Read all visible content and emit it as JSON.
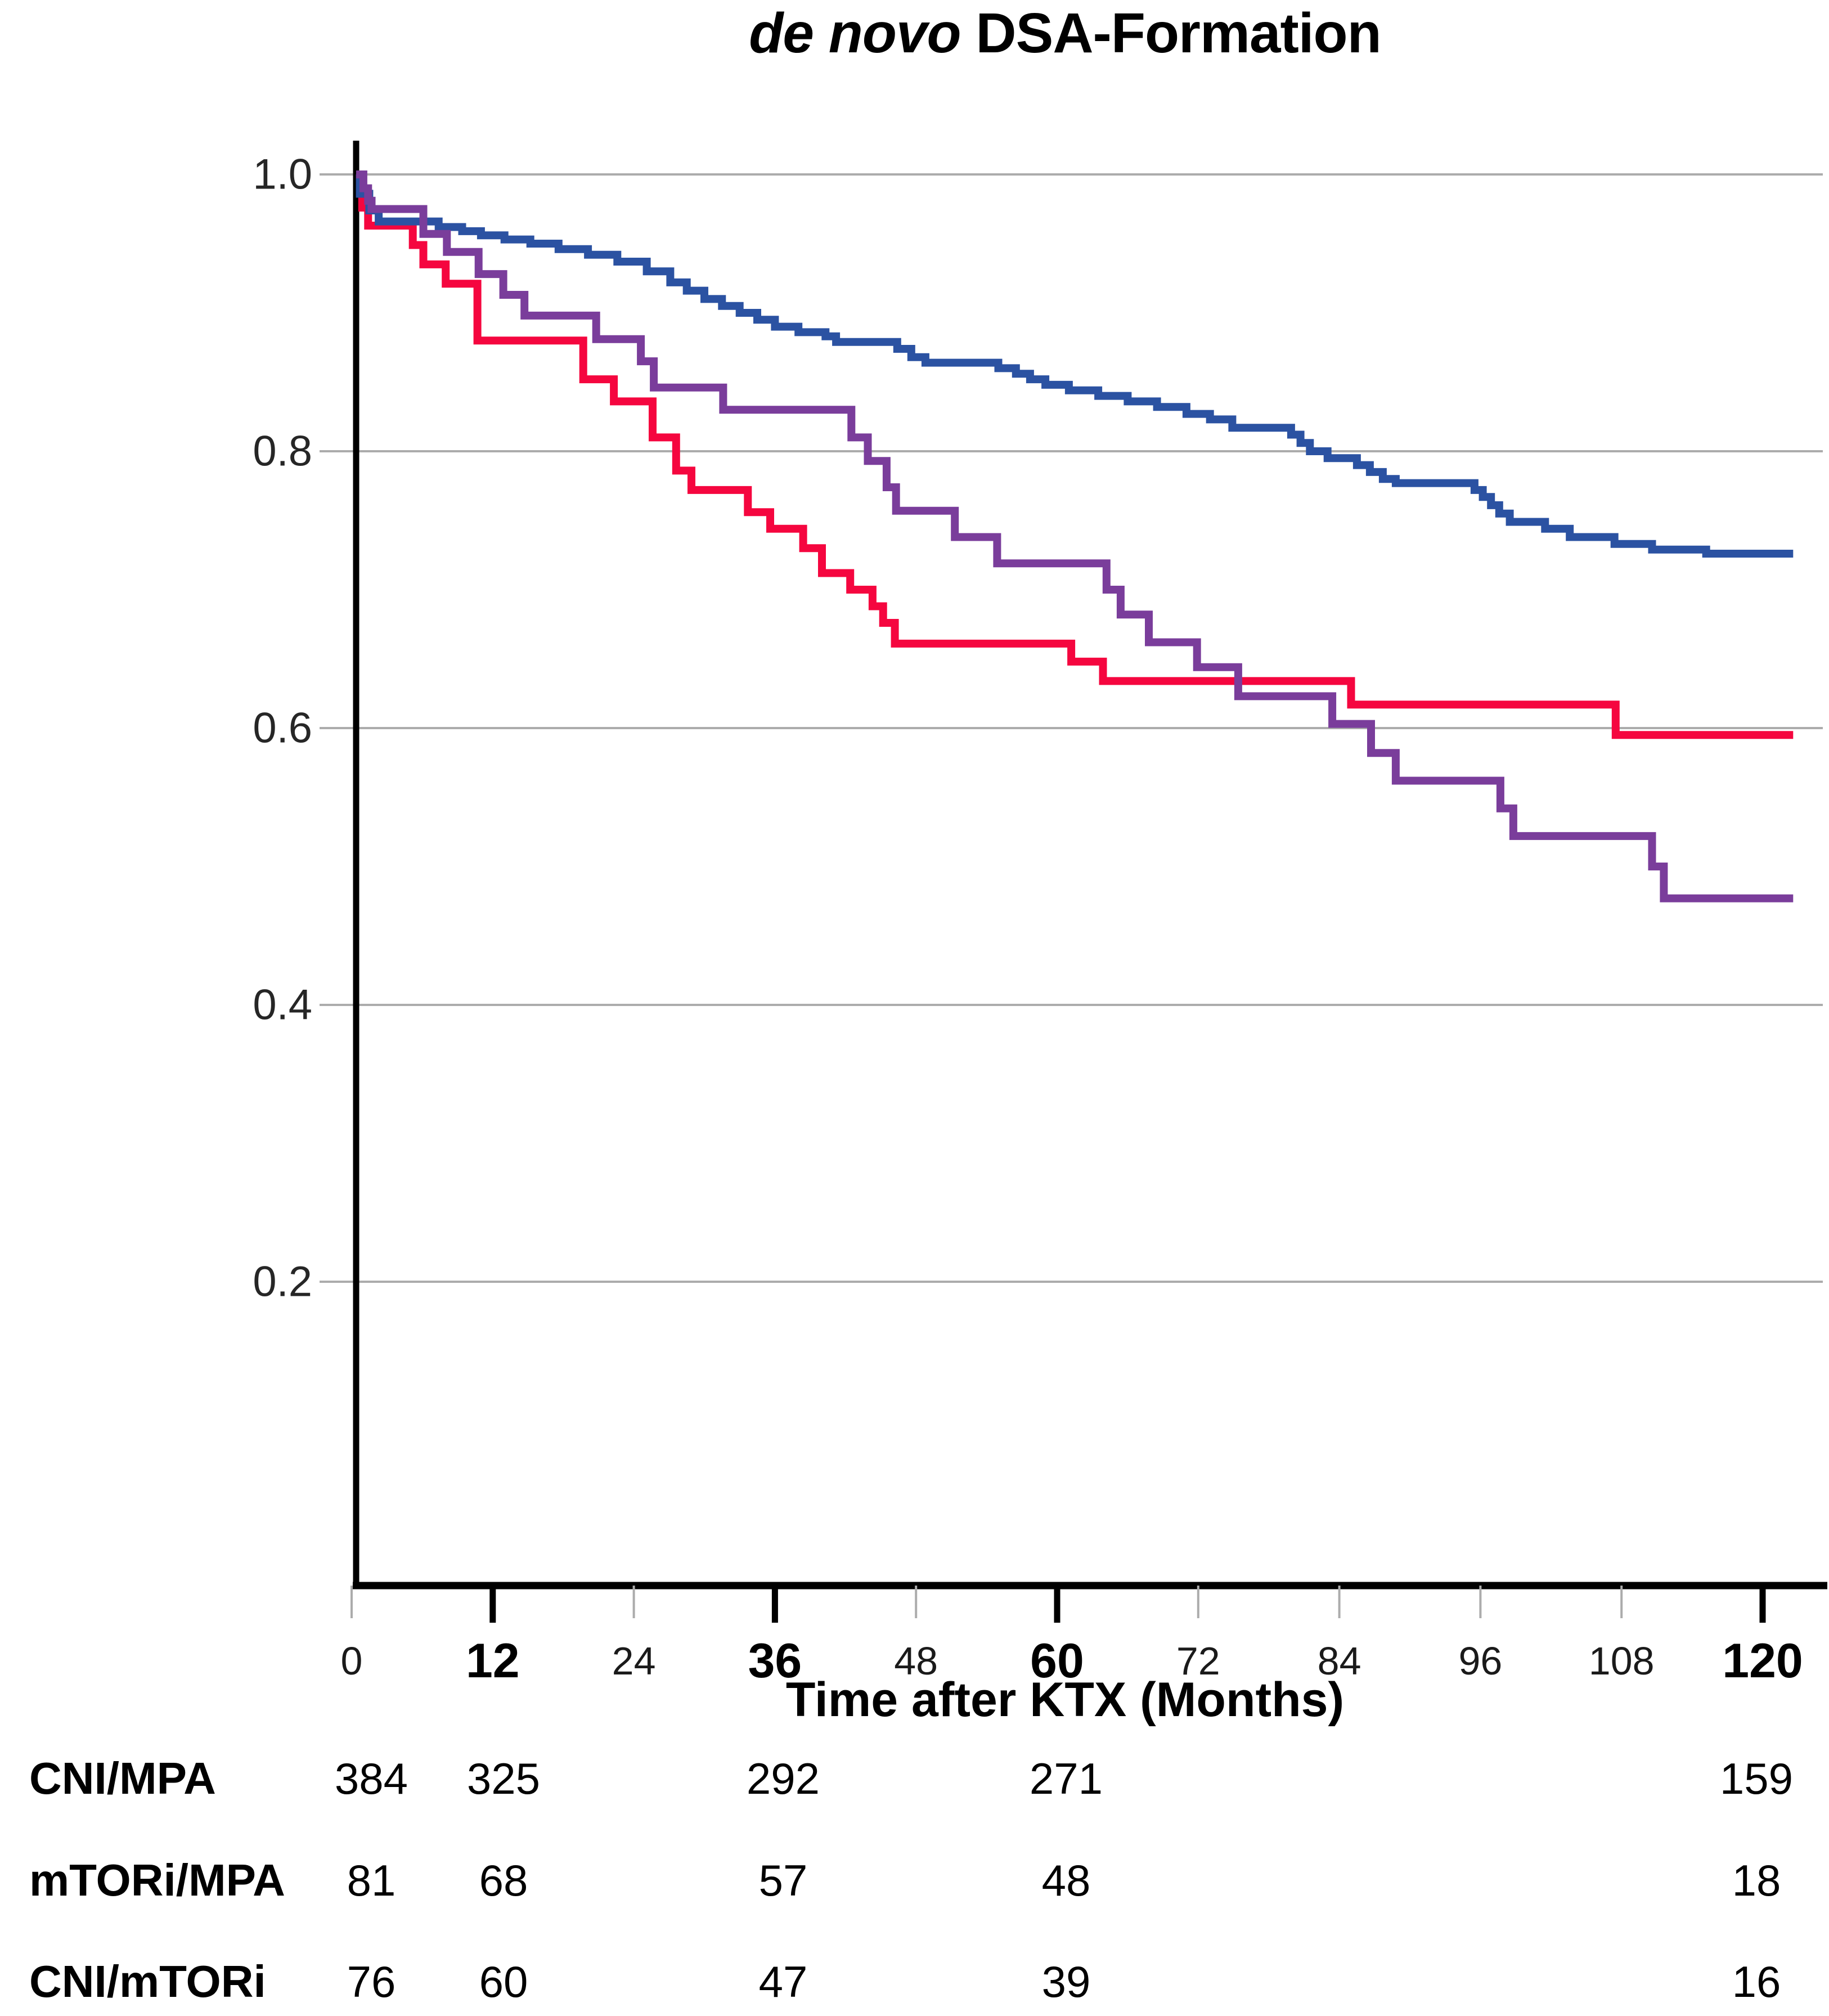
{
  "title": {
    "italic": "de novo",
    "rest": "DSA-Formation"
  },
  "chart_data": {
    "type": "line",
    "subtype": "kaplan-meier-step",
    "title": "de novo DSA-Formation",
    "xlabel": "Time after KTX (Months)",
    "ylabel": "",
    "xlim": [
      0,
      125
    ],
    "ylim": [
      0,
      1.05
    ],
    "grid": true,
    "y_ticks": [
      {
        "value": 1.0,
        "label": "1.0"
      },
      {
        "value": 0.8,
        "label": "0.8"
      },
      {
        "value": 0.6,
        "label": "0.6"
      },
      {
        "value": 0.4,
        "label": "0.4"
      },
      {
        "value": 0.2,
        "label": "0.2"
      }
    ],
    "x_ticks": [
      {
        "value": 0,
        "label": "0",
        "bold": false
      },
      {
        "value": 12,
        "label": "12",
        "bold": true
      },
      {
        "value": 24,
        "label": "24",
        "bold": false
      },
      {
        "value": 36,
        "label": "36",
        "bold": true
      },
      {
        "value": 48,
        "label": "48",
        "bold": false
      },
      {
        "value": 60,
        "label": "60",
        "bold": true
      },
      {
        "value": 72,
        "label": "72",
        "bold": false
      },
      {
        "value": 84,
        "label": "84",
        "bold": false
      },
      {
        "value": 96,
        "label": "96",
        "bold": false
      },
      {
        "value": 108,
        "label": "108",
        "bold": false
      },
      {
        "value": 120,
        "label": "120",
        "bold": true
      }
    ],
    "curve_end_month": 122.6,
    "series": [
      {
        "name": "CNI/mTORi",
        "color": "#F5063F",
        "steps": [
          [
            0,
            1.0
          ],
          [
            0.9,
            0.976
          ],
          [
            1.4,
            0.963
          ],
          [
            5.2,
            0.949
          ],
          [
            6.1,
            0.935
          ],
          [
            8.0,
            0.921
          ],
          [
            10.7,
            0.88
          ],
          [
            19.7,
            0.852
          ],
          [
            22.3,
            0.836
          ],
          [
            25.6,
            0.81
          ],
          [
            27.6,
            0.786
          ],
          [
            28.9,
            0.772
          ],
          [
            33.7,
            0.756
          ],
          [
            35.6,
            0.744
          ],
          [
            38.4,
            0.73
          ],
          [
            40.0,
            0.712
          ],
          [
            42.4,
            0.7
          ],
          [
            44.3,
            0.688
          ],
          [
            45.2,
            0.676
          ],
          [
            46.2,
            0.661
          ],
          [
            61.2,
            0.648
          ],
          [
            63.9,
            0.634
          ],
          [
            85.0,
            0.617
          ],
          [
            107.5,
            0.595
          ]
        ]
      },
      {
        "name": "CNI/MPA",
        "color": "#2B52A2",
        "steps": [
          [
            0,
            1.0
          ],
          [
            0.7,
            0.986
          ],
          [
            1.5,
            0.974
          ],
          [
            2.3,
            0.966
          ],
          [
            7.4,
            0.962
          ],
          [
            9.4,
            0.959
          ],
          [
            11,
            0.956
          ],
          [
            13,
            0.953
          ],
          [
            15.2,
            0.95
          ],
          [
            17.6,
            0.946
          ],
          [
            20.1,
            0.942
          ],
          [
            22.6,
            0.937
          ],
          [
            25.1,
            0.93
          ],
          [
            27.1,
            0.922
          ],
          [
            28.5,
            0.916
          ],
          [
            30,
            0.91
          ],
          [
            31.5,
            0.905
          ],
          [
            33,
            0.9
          ],
          [
            34.5,
            0.895
          ],
          [
            36,
            0.89
          ],
          [
            38,
            0.886
          ],
          [
            40.3,
            0.883
          ],
          [
            41.2,
            0.879
          ],
          [
            46.4,
            0.874
          ],
          [
            47.6,
            0.868
          ],
          [
            48.8,
            0.864
          ],
          [
            55,
            0.86
          ],
          [
            56.5,
            0.856
          ],
          [
            57.7,
            0.852
          ],
          [
            59,
            0.848
          ],
          [
            61,
            0.844
          ],
          [
            63.5,
            0.84
          ],
          [
            66,
            0.836
          ],
          [
            68.5,
            0.832
          ],
          [
            71,
            0.827
          ],
          [
            73,
            0.823
          ],
          [
            74.9,
            0.817
          ],
          [
            79.9,
            0.812
          ],
          [
            80.7,
            0.806
          ],
          [
            81.5,
            0.8
          ],
          [
            83,
            0.795
          ],
          [
            85.5,
            0.79
          ],
          [
            86.6,
            0.785
          ],
          [
            87.7,
            0.78
          ],
          [
            88.8,
            0.777
          ],
          [
            95.5,
            0.772
          ],
          [
            96.2,
            0.767
          ],
          [
            96.9,
            0.761
          ],
          [
            97.6,
            0.755
          ],
          [
            98.5,
            0.749
          ],
          [
            101.5,
            0.744
          ],
          [
            103.6,
            0.738
          ],
          [
            107.4,
            0.733
          ],
          [
            110.6,
            0.729
          ],
          [
            115.2,
            0.726
          ]
        ]
      },
      {
        "name": "mTORi/MPA",
        "color": "#7A3D9B",
        "steps": [
          [
            0,
            1.0
          ],
          [
            1.0,
            0.99
          ],
          [
            1.4,
            0.981
          ],
          [
            1.7,
            0.975
          ],
          [
            6.1,
            0.957
          ],
          [
            8.1,
            0.944
          ],
          [
            10.8,
            0.928
          ],
          [
            12.9,
            0.913
          ],
          [
            14.7,
            0.898
          ],
          [
            20.8,
            0.881
          ],
          [
            24.6,
            0.865
          ],
          [
            25.7,
            0.846
          ],
          [
            31.6,
            0.83
          ],
          [
            42.5,
            0.81
          ],
          [
            43.9,
            0.793
          ],
          [
            45.5,
            0.774
          ],
          [
            46.3,
            0.757
          ],
          [
            51.3,
            0.738
          ],
          [
            54.9,
            0.719
          ],
          [
            64.2,
            0.7
          ],
          [
            65.4,
            0.682
          ],
          [
            67.8,
            0.662
          ],
          [
            71.9,
            0.644
          ],
          [
            75.4,
            0.623
          ],
          [
            83.4,
            0.603
          ],
          [
            86.7,
            0.582
          ],
          [
            88.8,
            0.562
          ],
          [
            97.7,
            0.542
          ],
          [
            98.8,
            0.522
          ],
          [
            110.6,
            0.5
          ],
          [
            111.6,
            0.477
          ]
        ]
      }
    ],
    "risk_table": {
      "column_months": [
        0,
        12,
        36,
        60,
        120
      ],
      "rows": [
        {
          "label": "CNI/MPA",
          "values": [
            384,
            325,
            292,
            271,
            159
          ]
        },
        {
          "label": "mTORi/MPA",
          "values": [
            81,
            68,
            57,
            48,
            18
          ]
        },
        {
          "label": "CNI/mTORi",
          "values": [
            76,
            60,
            47,
            39,
            16
          ]
        }
      ]
    },
    "colors": {
      "grid": "#ACACAC",
      "axis": "#000000",
      "minor_tick": "#ACACAC",
      "tick_label": "#1A1A1A"
    }
  }
}
